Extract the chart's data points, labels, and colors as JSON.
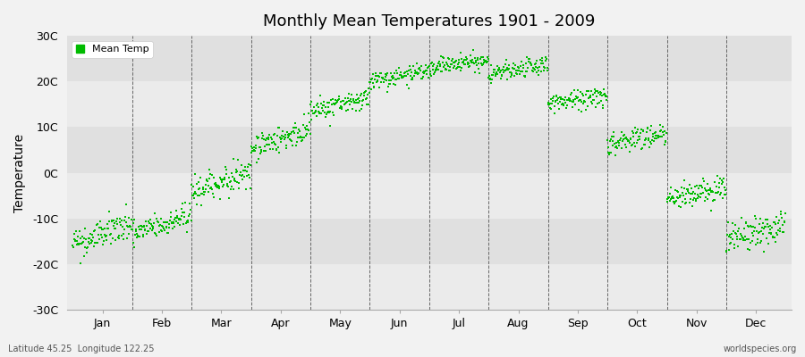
{
  "title": "Monthly Mean Temperatures 1901 - 2009",
  "ylabel": "Temperature",
  "ylim": [
    -30,
    30
  ],
  "yticks": [
    -30,
    -20,
    -10,
    0,
    10,
    20,
    30
  ],
  "ytick_labels": [
    "-30C",
    "-20C",
    "-10C",
    "0C",
    "10C",
    "20C",
    "30C"
  ],
  "months": [
    "Jan",
    "Feb",
    "Mar",
    "Apr",
    "May",
    "Jun",
    "Jul",
    "Aug",
    "Sep",
    "Oct",
    "Nov",
    "Dec"
  ],
  "dot_color": "#00BB00",
  "dot_size": 3,
  "background_color": "#f2f2f2",
  "plot_bg_light": "#ebebeb",
  "plot_bg_dark": "#e0e0e0",
  "grid_color": "#666666",
  "legend_label": "Mean Temp",
  "footer_left": "Latitude 45.25  Longitude 122.25",
  "footer_right": "worldspecies.org",
  "n_years": 109,
  "year_start": 1901,
  "year_end": 2009,
  "monthly_means_start": [
    -15.5,
    -13.5,
    -4.0,
    5.5,
    13.5,
    20.0,
    23.0,
    21.5,
    15.0,
    6.5,
    -5.5,
    -14.5
  ],
  "monthly_means_end": [
    -11.5,
    -9.5,
    0.0,
    9.5,
    16.5,
    22.0,
    25.0,
    23.5,
    17.0,
    8.5,
    -3.5,
    -11.5
  ],
  "monthly_stds": [
    1.8,
    1.5,
    1.5,
    1.4,
    1.2,
    1.0,
    1.0,
    1.0,
    1.2,
    1.4,
    1.5,
    1.8
  ]
}
